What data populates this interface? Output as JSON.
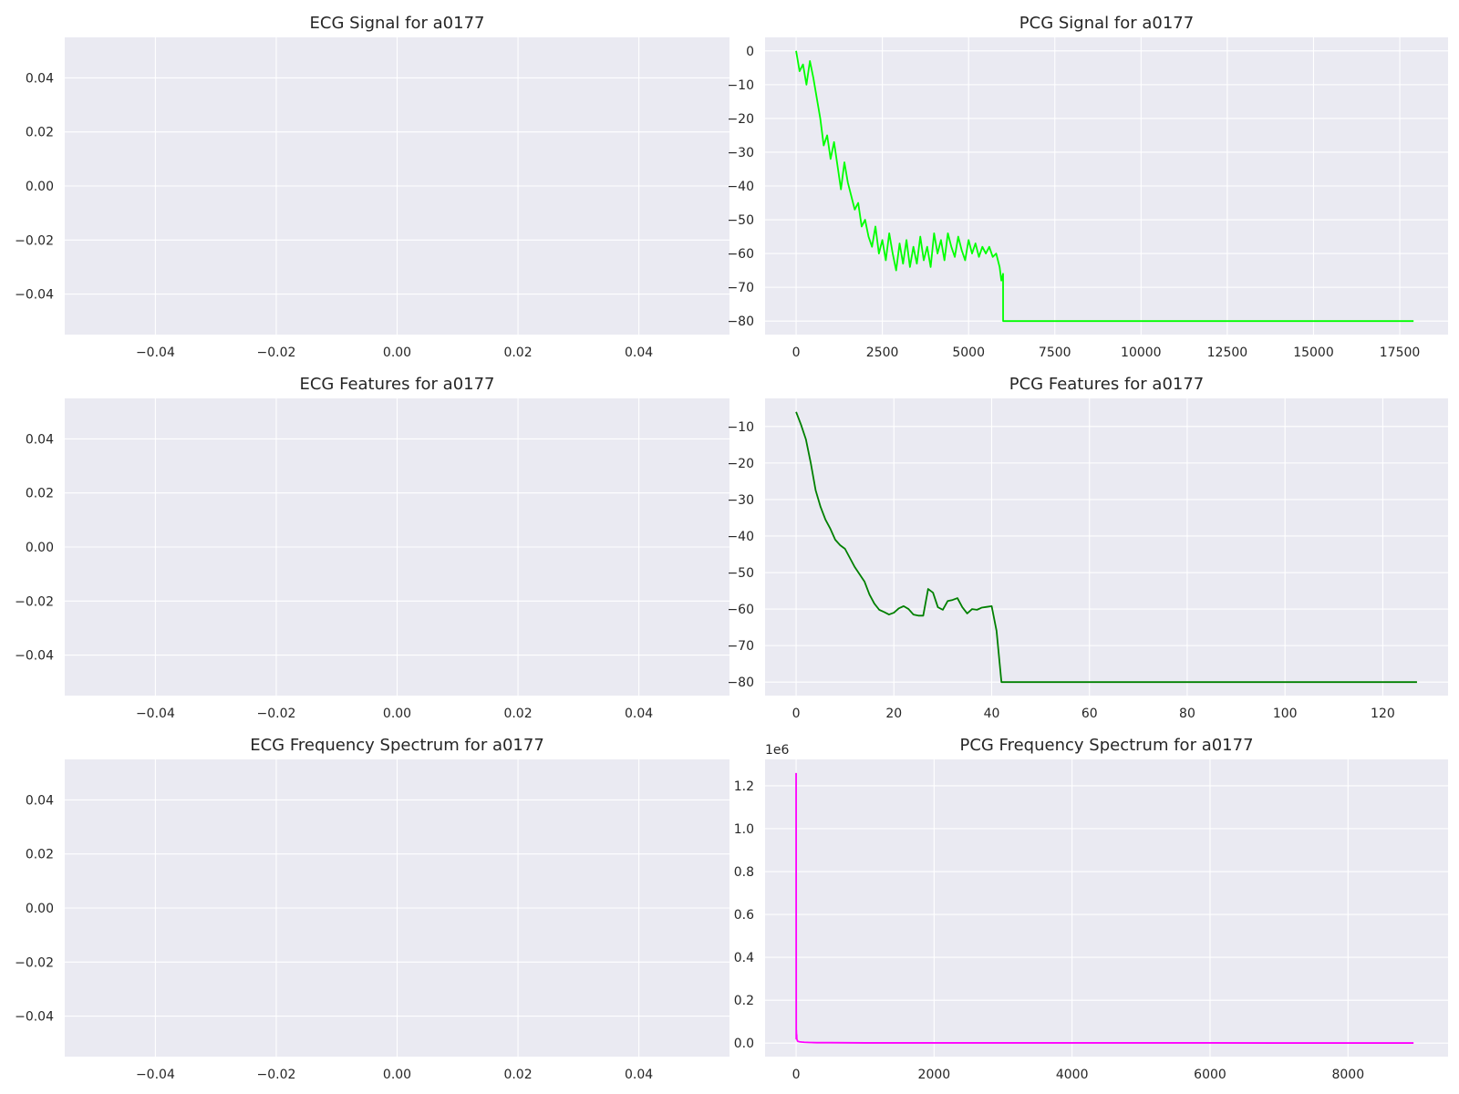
{
  "chart_data": [
    {
      "type": "line",
      "title": "ECG Signal for a0177",
      "xlabel": "",
      "ylabel": "",
      "xlim": [
        -0.055,
        0.055
      ],
      "ylim": [
        -0.055,
        0.055
      ],
      "xticks": [
        -0.04,
        -0.02,
        0.0,
        0.02,
        0.04
      ],
      "yticks": [
        -0.04,
        -0.02,
        0.0,
        0.02,
        0.04
      ],
      "xtick_labels": [
        "−0.04",
        "−0.02",
        "0.00",
        "0.02",
        "0.04"
      ],
      "ytick_labels": [
        "−0.04",
        "−0.02",
        "0.00",
        "0.02",
        "0.04"
      ],
      "grid": true,
      "series": [
        {
          "color": "#0000ff",
          "x": [],
          "y": []
        }
      ]
    },
    {
      "type": "line",
      "title": "PCG Signal for a0177",
      "xlabel": "",
      "ylabel": "",
      "xlim": [
        -900,
        18900
      ],
      "ylim": [
        -84,
        4
      ],
      "xticks": [
        0,
        2500,
        5000,
        7500,
        10000,
        12500,
        15000,
        17500
      ],
      "yticks": [
        0,
        -10,
        -20,
        -30,
        -40,
        -50,
        -60,
        -70,
        -80
      ],
      "xtick_labels": [
        "0",
        "2500",
        "5000",
        "7500",
        "10000",
        "12500",
        "15000",
        "17500"
      ],
      "ytick_labels": [
        "0",
        "−10",
        "−20",
        "−30",
        "−40",
        "−50",
        "−60",
        "−70",
        "−80"
      ],
      "grid": true,
      "series": [
        {
          "color": "#00ff00",
          "x": [
            0,
            100,
            200,
            300,
            400,
            500,
            600,
            700,
            800,
            900,
            1000,
            1100,
            1200,
            1300,
            1400,
            1500,
            1600,
            1700,
            1800,
            1900,
            2000,
            2100,
            2200,
            2300,
            2400,
            2500,
            2600,
            2700,
            2800,
            2900,
            3000,
            3100,
            3200,
            3300,
            3400,
            3500,
            3600,
            3700,
            3800,
            3900,
            4000,
            4100,
            4200,
            4300,
            4400,
            4500,
            4600,
            4700,
            4800,
            4900,
            5000,
            5100,
            5200,
            5300,
            5400,
            5500,
            5600,
            5700,
            5800,
            5900,
            5950,
            6000,
            6001,
            17900
          ],
          "y": [
            0,
            -6,
            -4,
            -10,
            -3,
            -8,
            -14,
            -20,
            -28,
            -25,
            -32,
            -27,
            -34,
            -41,
            -33,
            -39,
            -43,
            -47,
            -45,
            -52,
            -50,
            -55,
            -58,
            -52,
            -60,
            -56,
            -62,
            -54,
            -60,
            -65,
            -57,
            -63,
            -56,
            -64,
            -58,
            -63,
            -55,
            -62,
            -58,
            -64,
            -54,
            -60,
            -56,
            -62,
            -54,
            -58,
            -61,
            -55,
            -59,
            -62,
            -56,
            -60,
            -57,
            -61,
            -58,
            -60,
            -58,
            -61,
            -60,
            -64,
            -68,
            -66,
            -80,
            -80
          ]
        }
      ]
    },
    {
      "type": "line",
      "title": "ECG Features for a0177",
      "xlabel": "",
      "ylabel": "",
      "xlim": [
        -0.055,
        0.055
      ],
      "ylim": [
        -0.055,
        0.055
      ],
      "xticks": [
        -0.04,
        -0.02,
        0.0,
        0.02,
        0.04
      ],
      "yticks": [
        -0.04,
        -0.02,
        0.0,
        0.02,
        0.04
      ],
      "xtick_labels": [
        "−0.04",
        "−0.02",
        "0.00",
        "0.02",
        "0.04"
      ],
      "ytick_labels": [
        "−0.04",
        "−0.02",
        "0.00",
        "0.02",
        "0.04"
      ],
      "grid": true,
      "series": [
        {
          "color": "#0000ff",
          "x": [],
          "y": []
        }
      ]
    },
    {
      "type": "line",
      "title": "PCG Features for a0177",
      "xlabel": "",
      "ylabel": "",
      "xlim": [
        -6.35,
        133.35
      ],
      "ylim": [
        -83.7,
        -2.3
      ],
      "xticks": [
        0,
        20,
        40,
        60,
        80,
        100,
        120
      ],
      "yticks": [
        -10,
        -20,
        -30,
        -40,
        -50,
        -60,
        -70,
        -80
      ],
      "xtick_labels": [
        "0",
        "20",
        "40",
        "60",
        "80",
        "100",
        "120"
      ],
      "ytick_labels": [
        "−10",
        "−20",
        "−30",
        "−40",
        "−50",
        "−60",
        "−70",
        "−80"
      ],
      "grid": true,
      "series": [
        {
          "color": "#008000",
          "x": [
            0,
            1,
            2,
            3,
            4,
            5,
            6,
            7,
            8,
            9,
            10,
            11,
            12,
            13,
            14,
            15,
            16,
            17,
            18,
            19,
            20,
            21,
            22,
            23,
            24,
            25,
            26,
            27,
            28,
            29,
            30,
            31,
            32,
            33,
            34,
            35,
            36,
            37,
            38,
            39,
            40,
            41,
            42,
            43,
            44,
            127
          ],
          "y": [
            -6,
            -9.5,
            -13.5,
            -20,
            -27.5,
            -32,
            -35.5,
            -38,
            -41,
            -42.5,
            -43.5,
            -46,
            -48.5,
            -50.5,
            -52.5,
            -56,
            -58.5,
            -60.2,
            -60.8,
            -61.5,
            -61,
            -59.8,
            -59.2,
            -60,
            -61.5,
            -61.8,
            -61.8,
            -54.5,
            -55.5,
            -59.5,
            -60.2,
            -57.8,
            -57.5,
            -57,
            -59.5,
            -61.2,
            -60,
            -60.2,
            -59.6,
            -59.4,
            -59.2,
            -66,
            -80,
            -80,
            -80,
            -80
          ]
        }
      ]
    },
    {
      "type": "line",
      "title": "ECG Frequency Spectrum for a0177",
      "xlabel": "",
      "ylabel": "",
      "xlim": [
        -0.055,
        0.055
      ],
      "ylim": [
        -0.055,
        0.055
      ],
      "xticks": [
        -0.04,
        -0.02,
        0.0,
        0.02,
        0.04
      ],
      "yticks": [
        -0.04,
        -0.02,
        0.0,
        0.02,
        0.04
      ],
      "xtick_labels": [
        "−0.04",
        "−0.02",
        "0.00",
        "0.02",
        "0.04"
      ],
      "ytick_labels": [
        "−0.04",
        "−0.02",
        "0.00",
        "0.02",
        "0.04"
      ],
      "grid": true,
      "series": [
        {
          "color": "#0000ff",
          "x": [],
          "y": []
        }
      ]
    },
    {
      "type": "line",
      "title": "PCG Frequency Spectrum for a0177",
      "xlabel": "",
      "ylabel": "",
      "offset_label": "1e6",
      "xlim": [
        -450,
        9450
      ],
      "ylim": [
        -0.063,
        1.323
      ],
      "xticks": [
        0,
        2000,
        4000,
        6000,
        8000
      ],
      "yticks": [
        0.0,
        0.2,
        0.4,
        0.6,
        0.8,
        1.0,
        1.2
      ],
      "xtick_labels": [
        "0",
        "2000",
        "4000",
        "6000",
        "8000"
      ],
      "ytick_labels": [
        "0.0",
        "0.2",
        "0.4",
        "0.6",
        "0.8",
        "1.0",
        "1.2"
      ],
      "grid": true,
      "series": [
        {
          "color": "#ff00ff",
          "x": [
            0,
            2,
            4,
            6,
            8,
            10,
            15,
            20,
            30,
            50,
            80,
            120,
            200,
            300,
            500,
            1000,
            1500,
            2000,
            3000,
            4000,
            5000,
            6000,
            7000,
            8000,
            8950
          ],
          "y": [
            1.26,
            0.02,
            0.06,
            0.03,
            0.04,
            0.02,
            0.015,
            0.01,
            0.008,
            0.006,
            0.005,
            0.004,
            0.003,
            0.002,
            0.002,
            0.001,
            0.001,
            0.001,
            0.001,
            0.001,
            0.001,
            0.001,
            0.0005,
            0.0005,
            0.0005
          ]
        }
      ]
    }
  ]
}
